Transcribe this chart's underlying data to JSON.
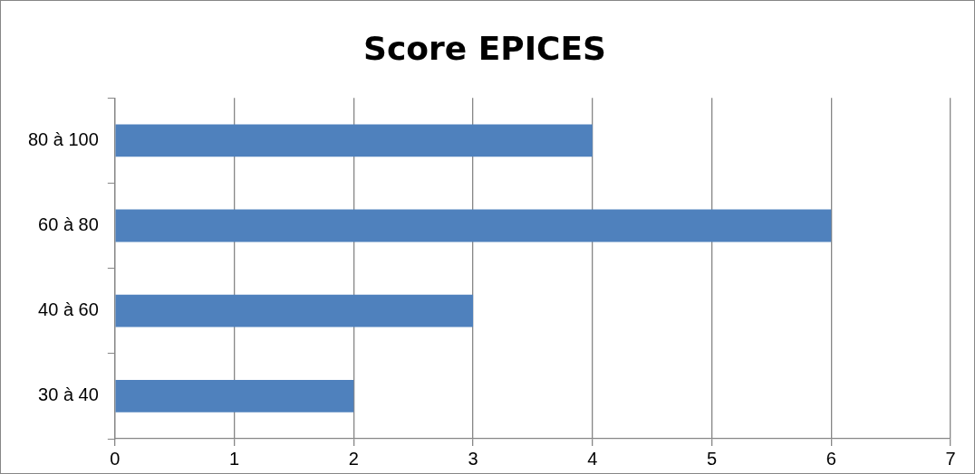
{
  "chart_data": {
    "type": "bar",
    "orientation": "horizontal",
    "title": "Score EPICES",
    "categories": [
      "80 à 100",
      "60 à 80",
      "40 à 60",
      "30 à 40"
    ],
    "values": [
      4,
      6,
      3,
      2
    ],
    "color": "#4f81bd",
    "xlim": [
      0,
      7
    ],
    "xticks": [
      0,
      1,
      2,
      3,
      4,
      5,
      6,
      7
    ],
    "grid": "x",
    "legend": false
  }
}
